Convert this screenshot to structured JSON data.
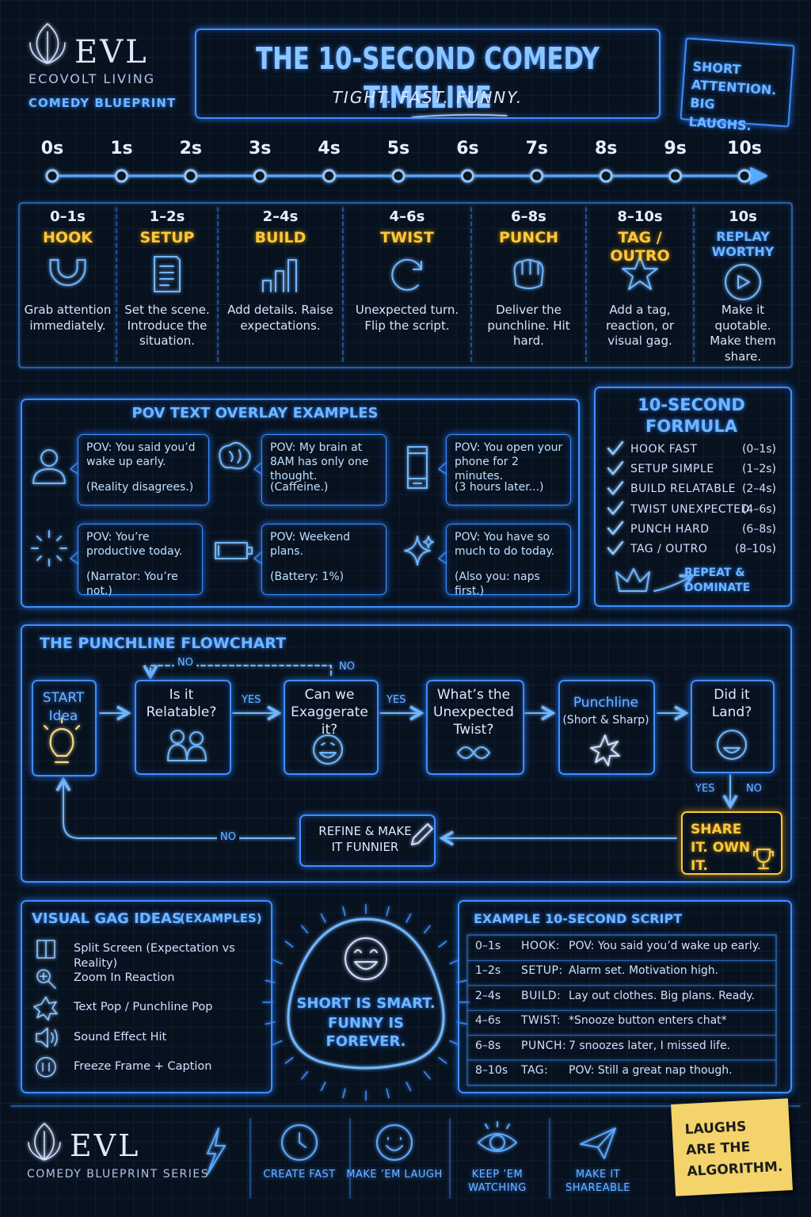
{
  "header": {
    "logo": {
      "mark": "EVL",
      "name": "ECOVOLT LIVING",
      "tagline": "COMEDY BLUEPRINT"
    },
    "title": "THE 10-SECOND COMEDY TIMELINE",
    "subtitle": "TIGHT. FAST. FUNNY.",
    "sticky_note": "SHORT ATTENTION. BIG LAUGHS."
  },
  "timeline": {
    "ticks": [
      "0s",
      "1s",
      "2s",
      "3s",
      "4s",
      "5s",
      "6s",
      "7s",
      "8s",
      "9s",
      "10s"
    ],
    "stages": [
      {
        "time": "0–1s",
        "name": "HOOK",
        "desc": "Grab attention immediately."
      },
      {
        "time": "1–2s",
        "name": "SETUP",
        "desc": "Set the scene. Introduce the situation."
      },
      {
        "time": "2–4s",
        "name": "BUILD",
        "desc": "Add details. Raise expectations."
      },
      {
        "time": "4–6s",
        "name": "TWIST",
        "desc": "Unexpected turn. Flip the script."
      },
      {
        "time": "6–8s",
        "name": "PUNCH",
        "desc": "Deliver the punchline. Hit hard."
      },
      {
        "time": "8–10s",
        "name": "TAG / OUTRO",
        "desc": "Add a tag, reaction, or visual gag."
      },
      {
        "time": "10s",
        "name": "REPLAY WORTHY",
        "desc": "Make it quotable. Make them share."
      }
    ]
  },
  "pov": {
    "title": "POV TEXT OVERLAY EXAMPLES",
    "items": [
      {
        "text": "POV: You said you’d wake up early.",
        "note": "(Reality disagrees.)"
      },
      {
        "text": "POV: My brain at 8AM has only one thought.",
        "note": "(Caffeine.)"
      },
      {
        "text": "POV: You open your phone for 2 minutes.",
        "note": "(3 hours later...)"
      },
      {
        "text": "POV: You’re productive today.",
        "note": "(Narrator: You’re not.)"
      },
      {
        "text": "POV: Weekend plans.",
        "note": "(Battery: 1%)"
      },
      {
        "text": "POV: You have so much to do today.",
        "note": "(Also you: naps first.)"
      }
    ]
  },
  "formula": {
    "title": "10-SECOND FORMULA",
    "items": [
      {
        "step": "HOOK FAST",
        "time": "(0–1s)"
      },
      {
        "step": "SETUP SIMPLE",
        "time": "(1–2s)"
      },
      {
        "step": "BUILD RELATABLE",
        "time": "(2–4s)"
      },
      {
        "step": "TWIST UNEXPECTED",
        "time": "(4–6s)"
      },
      {
        "step": "PUNCH HARD",
        "time": "(6–8s)"
      },
      {
        "step": "TAG / OUTRO",
        "time": "(8–10s)"
      }
    ],
    "footer": "REPEAT & DOMINATE"
  },
  "flowchart": {
    "title": "THE PUNCHLINE FLOWCHART",
    "nodes": {
      "start": {
        "title": "START",
        "sub": "Idea"
      },
      "relatable": "Is it Relatable?",
      "exaggerate": "Can we Exaggerate it?",
      "twist": "What’s the Unexpected Twist?",
      "punchline": {
        "title": "Punchline",
        "sub": "(Short & Sharp)"
      },
      "land": "Did it Land?",
      "share": "SHARE IT. OWN IT.",
      "refine": "REFINE & MAKE IT FUNNIER"
    },
    "edges": {
      "loop_no_left": "NO",
      "loop_no_right": "NO",
      "relatable_yes": "YES",
      "exaggerate_yes": "YES",
      "land_yes": "YES",
      "land_no": "NO",
      "refine_no": "NO"
    }
  },
  "gags": {
    "title": "VISUAL GAG IDEAS",
    "title_note": "(EXAMPLES)",
    "items": [
      "Split Screen (Expectation vs Reality)",
      "Zoom In Reaction",
      "Text Pop / Punchline Pop",
      "Sound Effect Hit",
      "Freeze Frame + Caption"
    ]
  },
  "badge": {
    "line1": "SHORT IS SMART.",
    "line2": "FUNNY IS FOREVER."
  },
  "script": {
    "title": "EXAMPLE 10-SECOND SCRIPT",
    "rows": [
      [
        "0–1s",
        "HOOK:",
        "POV: You said you’d wake up early."
      ],
      [
        "1–2s",
        "SETUP:",
        "Alarm set. Motivation high."
      ],
      [
        "2–4s",
        "BUILD:",
        "Lay out clothes. Big plans. Ready."
      ],
      [
        "4–6s",
        "TWIST:",
        "*Snooze button enters chat*"
      ],
      [
        "6–8s",
        "PUNCH:",
        "7 snoozes later, I missed life."
      ],
      [
        "8–10s",
        "TAG:",
        "POV: Still a great nap though."
      ]
    ]
  },
  "footer": {
    "logo": "EVL",
    "series": "COMEDY BLUEPRINT SERIES",
    "actions": [
      "CREATE FAST",
      "MAKE ’EM LAUGH",
      "KEEP ’EM WATCHING",
      "MAKE IT SHAREABLE"
    ],
    "sticky_note": "LAUGHS ARE THE ALGORITHM."
  }
}
